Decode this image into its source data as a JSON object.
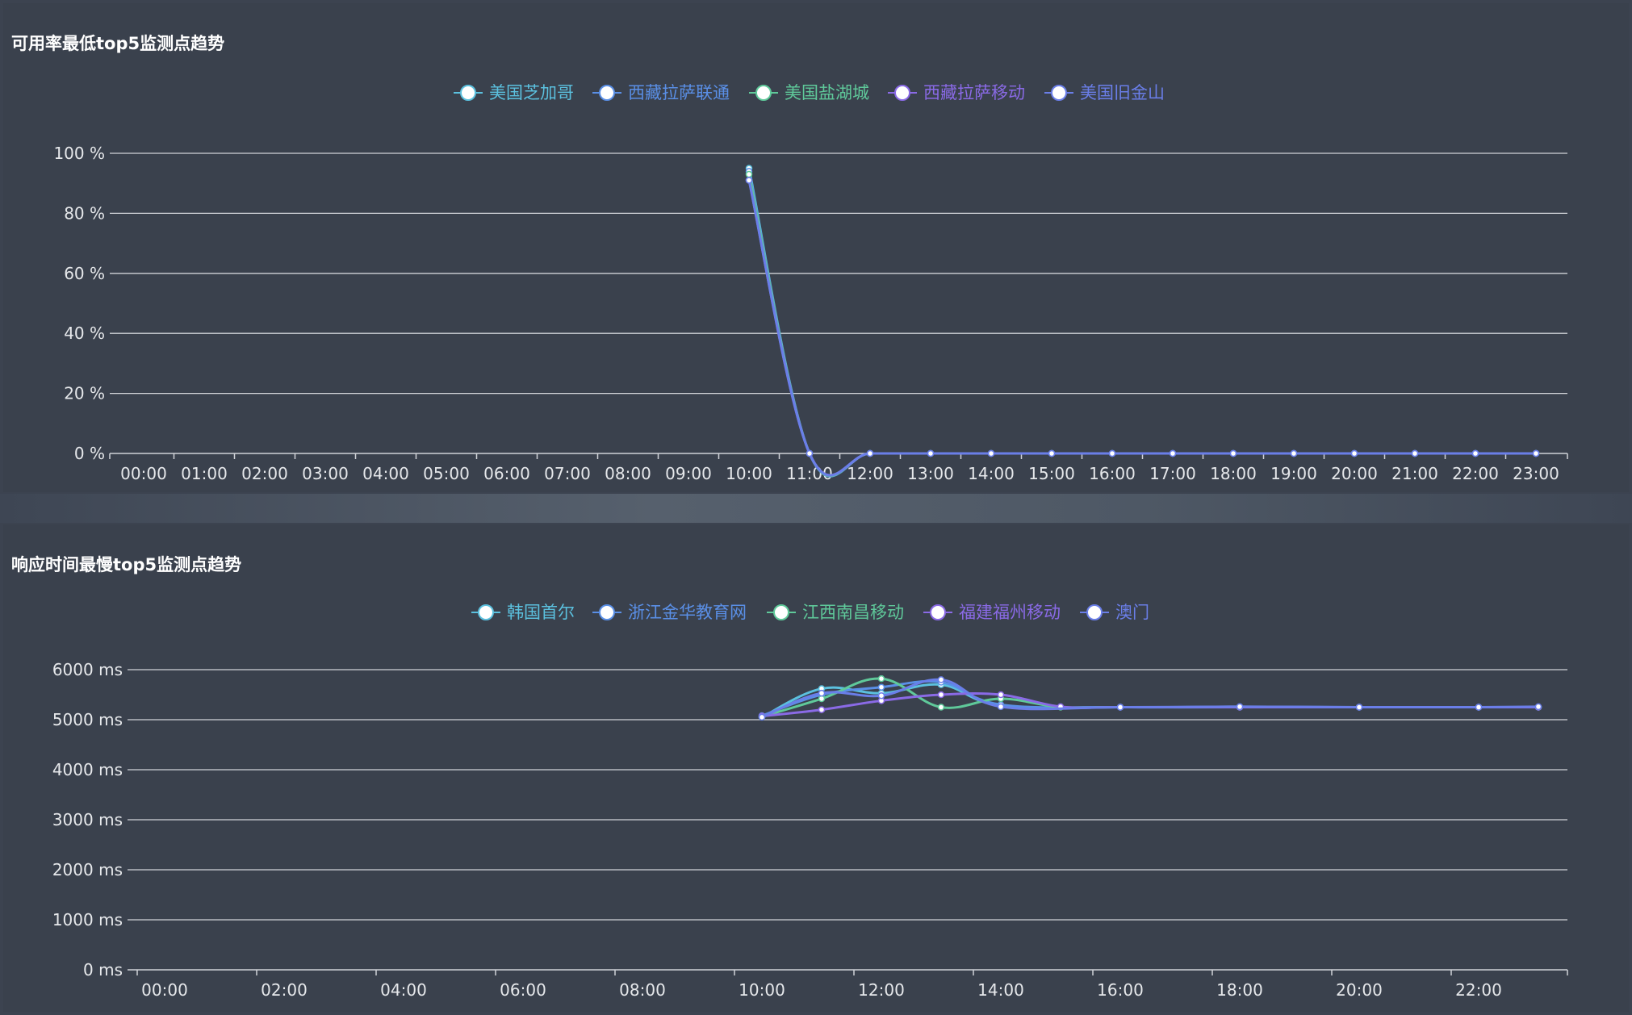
{
  "charts": [
    {
      "title": "可用率最低top5监测点趋势",
      "chart_data": {
        "type": "line",
        "categories": [
          "00:00",
          "01:00",
          "02:00",
          "03:00",
          "04:00",
          "05:00",
          "06:00",
          "07:00",
          "08:00",
          "09:00",
          "10:00",
          "11:00",
          "12:00",
          "13:00",
          "14:00",
          "15:00",
          "16:00",
          "17:00",
          "18:00",
          "19:00",
          "20:00",
          "21:00",
          "22:00",
          "23:00"
        ],
        "y_ticks": [
          0,
          20,
          40,
          60,
          80,
          100
        ],
        "y_unit": " %",
        "ylim": [
          0,
          100
        ],
        "grid": true,
        "legend_position": "top-center",
        "series": [
          {
            "name": "美国芝加哥",
            "color": "#5bc0de",
            "values": [
              null,
              null,
              null,
              null,
              null,
              null,
              null,
              null,
              null,
              null,
              95,
              0,
              0,
              0,
              0,
              0,
              0,
              0,
              0,
              0,
              0,
              0,
              0,
              0
            ]
          },
          {
            "name": "西藏拉萨联通",
            "color": "#5a8fe6",
            "values": [
              null,
              null,
              null,
              null,
              null,
              null,
              null,
              null,
              null,
              null,
              94,
              0,
              0,
              0,
              0,
              0,
              0,
              0,
              0,
              0,
              0,
              0,
              0,
              0
            ]
          },
          {
            "name": "美国盐湖城",
            "color": "#5fc99a",
            "values": [
              null,
              null,
              null,
              null,
              null,
              null,
              null,
              null,
              null,
              null,
              93,
              0,
              0,
              0,
              0,
              0,
              0,
              0,
              0,
              0,
              0,
              0,
              0,
              0
            ]
          },
          {
            "name": "西藏拉萨移动",
            "color": "#8a6ae6",
            "values": [
              null,
              null,
              null,
              null,
              null,
              null,
              null,
              null,
              null,
              null,
              91,
              0,
              0,
              0,
              0,
              0,
              0,
              0,
              0,
              0,
              0,
              0,
              0,
              0
            ]
          },
          {
            "name": "美国旧金山",
            "color": "#6a7ee8",
            "values": [
              null,
              null,
              null,
              null,
              null,
              null,
              null,
              null,
              null,
              null,
              91,
              0,
              0,
              0,
              0,
              0,
              0,
              0,
              0,
              0,
              0,
              0,
              0,
              0
            ]
          }
        ]
      }
    },
    {
      "title": "响应时间最慢top5监测点趋势",
      "chart_data": {
        "type": "line",
        "categories": [
          "00:00",
          "02:00",
          "04:00",
          "06:00",
          "08:00",
          "10:00",
          "12:00",
          "14:00",
          "16:00",
          "18:00",
          "20:00",
          "22:00"
        ],
        "y_ticks": [
          0,
          1000,
          2000,
          3000,
          4000,
          5000,
          6000
        ],
        "y_unit": " ms",
        "ylim": [
          0,
          6000
        ],
        "grid": true,
        "legend_position": "top-center",
        "series": [
          {
            "name": "韩国首尔",
            "color": "#5bc0de",
            "points": [
              [
                10,
                5050
              ],
              [
                11,
                5620
              ],
              [
                12,
                5530
              ],
              [
                13,
                5700
              ],
              [
                14,
                5280
              ],
              [
                16,
                5250
              ],
              [
                18,
                5250
              ],
              [
                20,
                5250
              ],
              [
                22,
                5250
              ],
              [
                23,
                5250
              ]
            ]
          },
          {
            "name": "浙江金华教育网",
            "color": "#5a8fe6",
            "points": [
              [
                10,
                5080
              ],
              [
                11,
                5500
              ],
              [
                12,
                5650
              ],
              [
                13,
                5750
              ],
              [
                14,
                5300
              ],
              [
                16,
                5250
              ],
              [
                18,
                5260
              ],
              [
                20,
                5250
              ],
              [
                22,
                5250
              ],
              [
                23,
                5250
              ]
            ]
          },
          {
            "name": "江西南昌移动",
            "color": "#5fc99a",
            "points": [
              [
                10,
                5060
              ],
              [
                11,
                5420
              ],
              [
                12,
                5820
              ],
              [
                13,
                5250
              ],
              [
                14,
                5420
              ],
              [
                15,
                5250
              ],
              [
                16,
                5250
              ],
              [
                18,
                5250
              ],
              [
                20,
                5250
              ],
              [
                22,
                5250
              ],
              [
                23,
                5250
              ]
            ]
          },
          {
            "name": "福建福州移动",
            "color": "#8a6ae6",
            "points": [
              [
                10,
                5070
              ],
              [
                11,
                5200
              ],
              [
                12,
                5380
              ],
              [
                13,
                5500
              ],
              [
                14,
                5500
              ],
              [
                15,
                5260
              ],
              [
                16,
                5250
              ],
              [
                18,
                5250
              ],
              [
                20,
                5250
              ],
              [
                22,
                5250
              ],
              [
                23,
                5250
              ]
            ]
          },
          {
            "name": "澳门",
            "color": "#6a7ee8",
            "points": [
              [
                10,
                5050
              ],
              [
                11,
                5530
              ],
              [
                12,
                5480
              ],
              [
                13,
                5800
              ],
              [
                14,
                5260
              ],
              [
                16,
                5250
              ],
              [
                18,
                5260
              ],
              [
                20,
                5250
              ],
              [
                22,
                5250
              ],
              [
                23,
                5260
              ]
            ]
          }
        ]
      }
    }
  ]
}
